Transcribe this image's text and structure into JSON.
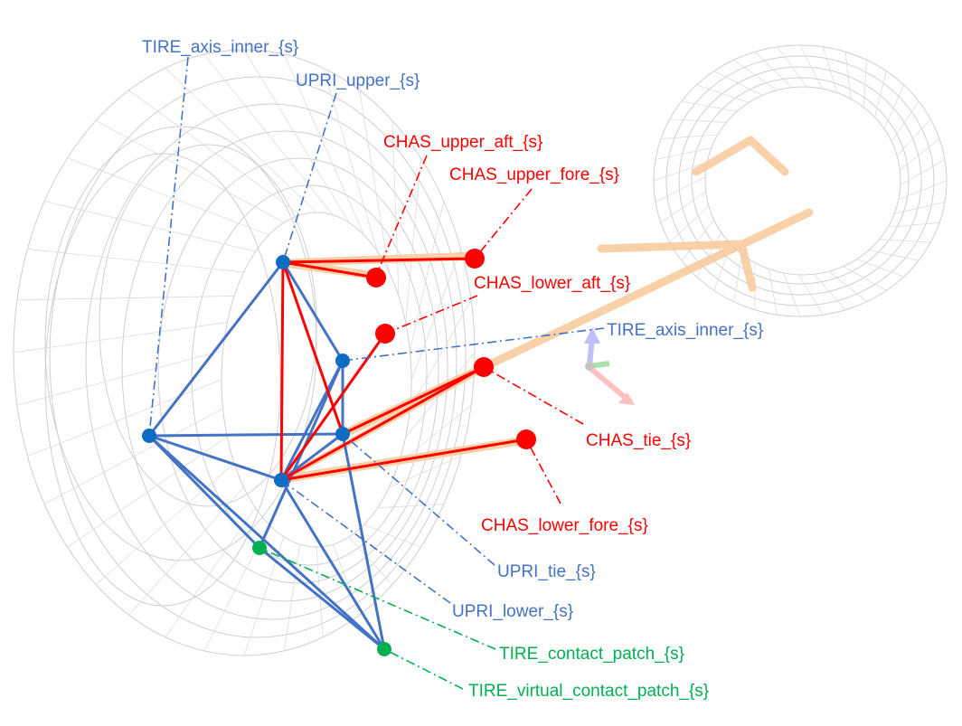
{
  "colors": {
    "blue": "#4472C4",
    "node_blue": "#0E6CC2",
    "red": "#FF0000",
    "green": "#00B050",
    "mesh": "#c9c9c9",
    "member": "#F8C99B"
  },
  "labels": {
    "tire_axis_inner_top": "TIRE_axis_inner_{s}",
    "upri_upper": "UPRI_upper_{s}",
    "chas_upper_aft": "CHAS_upper_aft_{s}",
    "chas_upper_fore": "CHAS_upper_fore_{s}",
    "chas_lower_aft": "CHAS_lower_aft_{s}",
    "tire_axis_inner_right": "TIRE_axis_inner_{s}",
    "chas_tie": "CHAS_tie_{s}",
    "chas_lower_fore": "CHAS_lower_fore_{s}",
    "upri_tie": "UPRI_tie_{s}",
    "upri_lower": "UPRI_lower_{s}",
    "tire_contact_patch": "TIRE_contact_patch_{s}",
    "tire_virtual_contact_patch": "TIRE_virtual_contact_patch_{s}"
  }
}
